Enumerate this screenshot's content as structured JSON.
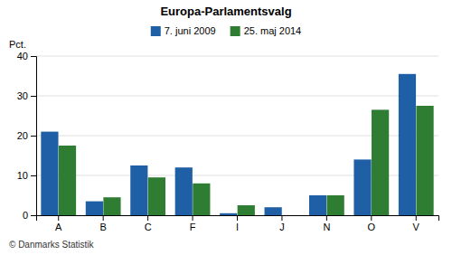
{
  "chart_data": {
    "type": "bar",
    "title": "Europa-Parlamentsvalg",
    "categories": [
      "A",
      "B",
      "C",
      "F",
      "I",
      "J",
      "N",
      "O",
      "V"
    ],
    "series": [
      {
        "name": "7. juni 2009",
        "color": "#1F5FA6",
        "values": [
          21.0,
          3.5,
          12.5,
          12.0,
          0.5,
          2.0,
          5.0,
          14.0,
          35.5
        ]
      },
      {
        "name": "25. maj 2014",
        "color": "#2E7D32",
        "values": [
          17.5,
          4.5,
          9.5,
          8.0,
          2.5,
          0.0,
          5.0,
          26.5,
          27.5
        ]
      }
    ],
    "ylabel": "Pct.",
    "ylim": [
      0,
      40
    ],
    "yticks": [
      0,
      10,
      20,
      30,
      40
    ],
    "grid": true,
    "legend": "top",
    "annotations": [
      "© Danmarks Statistik"
    ]
  }
}
